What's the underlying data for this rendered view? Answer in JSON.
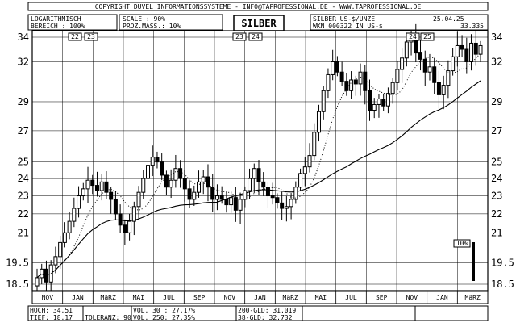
{
  "header": {
    "copyright": "COPYRIGHT  DUVEL INFORMATIONSSYSTEME - INFO@TAPROFESSIONAL.DE - WWW.TAPROFESSIONAL.DE",
    "logarithmisch": "LOGARITHMISCH",
    "scale": "SCALE : 90%",
    "title": "SILBER",
    "instrument": "SILBER US-$/UNZE",
    "date": "25.04.25",
    "bereich": "BEREICH :  100%",
    "proz_mass": "PROZ.MASS.: 10%",
    "wkn": "WKN 000322  IN US-$",
    "last_value": "33.335"
  },
  "year_markers": [
    "22",
    "23",
    "23",
    "24",
    "24",
    "25"
  ],
  "scale_marker": "10%",
  "footer": {
    "hoch": "HOCH: 34.51",
    "tief": "TIEF: 18.17",
    "toleranz": "TOLERANZ: 90%",
    "vol30": "VOL. 30 : 27.17%",
    "vol250": "VOL. 250: 27.35%",
    "gld200": "200-GLD: 31.019",
    "gld38": "38-GLD: 32.732"
  },
  "chart_data": {
    "type": "candlestick",
    "title": "SILBER",
    "y_scale": "log",
    "ylim": [
      18.17,
      35
    ],
    "y_ticks_right": [
      34,
      32,
      29,
      27,
      25,
      24,
      23,
      22,
      21,
      19.5,
      18.5
    ],
    "y_ticks_left": [
      34,
      32,
      29,
      27,
      25,
      24,
      23,
      22,
      21,
      19.5,
      18.5
    ],
    "x_labels": [
      "NOV",
      "JAN",
      "MäRZ",
      "MAI",
      "JUL",
      "SEP",
      "NOV",
      "JAN",
      "MäRZ",
      "MAI",
      "JUL",
      "SEP",
      "NOV",
      "JAN",
      "MäRZ"
    ],
    "period": "Oct 2022 - Apr 2025 (weekly)",
    "close_path": [
      18.8,
      19.2,
      18.6,
      19.4,
      19.8,
      20.5,
      21.0,
      21.6,
      22.3,
      23.0,
      23.4,
      23.9,
      23.6,
      23.3,
      23.8,
      23.2,
      22.8,
      22.0,
      21.4,
      21.0,
      21.6,
      22.4,
      23.2,
      24.0,
      24.8,
      25.3,
      25.0,
      24.2,
      23.5,
      23.9,
      24.6,
      24.0,
      23.4,
      22.8,
      23.2,
      23.8,
      24.1,
      23.5,
      22.8,
      23.0,
      22.8,
      22.5,
      22.9,
      22.2,
      22.8,
      23.3,
      24.0,
      24.6,
      23.8,
      23.5,
      23.0,
      22.9,
      22.6,
      22.3,
      22.4,
      22.8,
      23.5,
      24.3,
      24.7,
      25.4,
      26.9,
      28.3,
      29.8,
      31.0,
      32.0,
      31.2,
      30.5,
      29.8,
      30.6,
      30.3,
      31.2,
      29.8,
      28.4,
      28.8,
      29.2,
      28.7,
      29.6,
      30.4,
      31.4,
      32.3,
      33.6,
      34.2,
      32.7,
      32.2,
      31.2,
      31.6,
      30.4,
      29.5,
      30.2,
      31.3,
      32.4,
      33.3,
      33.0,
      32.0,
      33.5,
      32.6,
      33.3
    ],
    "sma_200": {
      "name": "200-GLD",
      "last": 31.019
    },
    "sma_38": {
      "name": "38-GLD",
      "last": 32.732
    },
    "high": 34.51,
    "low": 18.17,
    "last": 33.335
  }
}
